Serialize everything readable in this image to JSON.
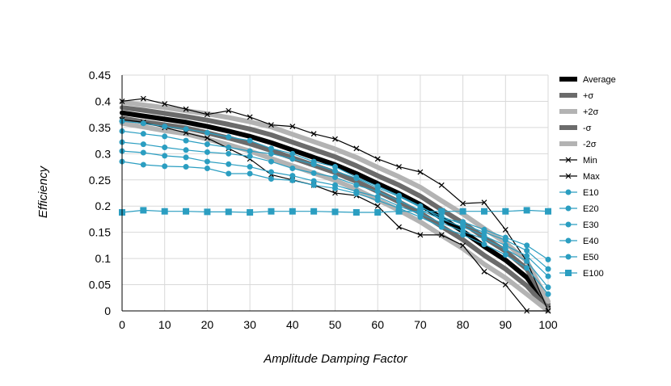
{
  "chart_data": {
    "type": "line",
    "xlabel": "Amplitude Damping Factor",
    "ylabel": "Efficiency",
    "xlim": [
      0,
      100
    ],
    "ylim": [
      0,
      0.45
    ],
    "xticks": [
      0,
      10,
      20,
      30,
      40,
      50,
      60,
      70,
      80,
      90,
      100
    ],
    "yticks": [
      0,
      0.05,
      0.1,
      0.15,
      0.2,
      0.25,
      0.3,
      0.35,
      0.4,
      0.45
    ],
    "ytick_labels": [
      "0",
      "0.05",
      "0.1",
      "0.15",
      "0.2",
      "0.25",
      "0.3",
      "0.35",
      "0.4",
      "0.45"
    ],
    "grid": true,
    "legend_position": "right",
    "x": [
      0,
      5,
      10,
      15,
      20,
      25,
      30,
      35,
      40,
      45,
      50,
      55,
      60,
      65,
      70,
      75,
      80,
      85,
      90,
      95,
      100
    ],
    "series": [
      {
        "name": "Average",
        "color": "#000000",
        "width": 6,
        "marker": "none",
        "values": [
          0.378,
          0.372,
          0.366,
          0.36,
          0.352,
          0.343,
          0.333,
          0.321,
          0.307,
          0.293,
          0.279,
          0.262,
          0.243,
          0.224,
          0.203,
          0.177,
          0.152,
          0.123,
          0.097,
          0.064,
          0.008
        ]
      },
      {
        "name": "+σ",
        "color": "#6b6b6b",
        "width": 6,
        "marker": "none",
        "values": [
          0.388,
          0.383,
          0.377,
          0.371,
          0.364,
          0.356,
          0.347,
          0.336,
          0.322,
          0.308,
          0.294,
          0.277,
          0.258,
          0.24,
          0.219,
          0.193,
          0.168,
          0.14,
          0.114,
          0.08,
          0.013
        ]
      },
      {
        "name": "+2σ",
        "color": "#b3b3b3",
        "width": 6,
        "marker": "none",
        "values": [
          0.398,
          0.393,
          0.388,
          0.382,
          0.376,
          0.369,
          0.361,
          0.351,
          0.337,
          0.323,
          0.309,
          0.293,
          0.274,
          0.256,
          0.236,
          0.21,
          0.185,
          0.157,
          0.13,
          0.095,
          0.018
        ]
      },
      {
        "name": "-σ",
        "color": "#6b6b6b",
        "width": 6,
        "marker": "none",
        "values": [
          0.368,
          0.361,
          0.355,
          0.349,
          0.34,
          0.33,
          0.319,
          0.306,
          0.292,
          0.278,
          0.264,
          0.247,
          0.228,
          0.208,
          0.187,
          0.161,
          0.136,
          0.106,
          0.08,
          0.048,
          0.003
        ]
      },
      {
        "name": "-2σ",
        "color": "#b3b3b3",
        "width": 6,
        "marker": "none",
        "values": [
          0.358,
          0.351,
          0.344,
          0.338,
          0.328,
          0.317,
          0.305,
          0.291,
          0.277,
          0.263,
          0.249,
          0.232,
          0.212,
          0.192,
          0.17,
          0.144,
          0.119,
          0.089,
          0.063,
          0.032,
          0.0
        ]
      },
      {
        "name": "Min",
        "color": "#000000",
        "width": 1.2,
        "marker": "x",
        "values": [
          0.365,
          0.36,
          0.35,
          0.34,
          0.33,
          0.31,
          0.29,
          0.26,
          0.25,
          0.24,
          0.225,
          0.22,
          0.2,
          0.16,
          0.145,
          0.145,
          0.125,
          0.075,
          0.05,
          0.0,
          0.0
        ]
      },
      {
        "name": "Max",
        "color": "#000000",
        "width": 1.2,
        "marker": "x",
        "values": [
          0.4,
          0.405,
          0.395,
          0.385,
          0.375,
          0.382,
          0.37,
          0.355,
          0.352,
          0.338,
          0.328,
          0.31,
          0.29,
          0.275,
          0.265,
          0.24,
          0.205,
          0.207,
          0.155,
          0.095,
          0.0
        ]
      },
      {
        "name": "E10",
        "color": "#2b9ec1",
        "width": 1.2,
        "marker": "circle",
        "values": [
          0.362,
          0.358,
          0.352,
          0.347,
          0.34,
          0.332,
          0.325,
          0.31,
          0.3,
          0.285,
          0.275,
          0.255,
          0.238,
          0.22,
          0.2,
          0.175,
          0.17,
          0.155,
          0.14,
          0.125,
          0.098
        ]
      },
      {
        "name": "E20",
        "color": "#2b9ec1",
        "width": 1.2,
        "marker": "circle",
        "values": [
          0.343,
          0.338,
          0.333,
          0.325,
          0.318,
          0.312,
          0.305,
          0.3,
          0.29,
          0.28,
          0.267,
          0.253,
          0.235,
          0.218,
          0.198,
          0.18,
          0.165,
          0.15,
          0.135,
          0.115,
          0.08
        ]
      },
      {
        "name": "E30",
        "color": "#2b9ec1",
        "width": 1.2,
        "marker": "circle",
        "values": [
          0.322,
          0.318,
          0.312,
          0.307,
          0.303,
          0.3,
          0.295,
          0.285,
          0.272,
          0.263,
          0.255,
          0.24,
          0.228,
          0.21,
          0.192,
          0.175,
          0.16,
          0.143,
          0.125,
          0.105,
          0.066
        ]
      },
      {
        "name": "E40",
        "color": "#2b9ec1",
        "width": 1.2,
        "marker": "circle",
        "values": [
          0.305,
          0.302,
          0.296,
          0.293,
          0.285,
          0.28,
          0.275,
          0.265,
          0.258,
          0.248,
          0.24,
          0.228,
          0.218,
          0.2,
          0.185,
          0.168,
          0.152,
          0.137,
          0.118,
          0.095,
          0.045
        ]
      },
      {
        "name": "E50",
        "color": "#2b9ec1",
        "width": 1.2,
        "marker": "circle",
        "values": [
          0.285,
          0.279,
          0.276,
          0.275,
          0.272,
          0.262,
          0.262,
          0.252,
          0.249,
          0.24,
          0.234,
          0.224,
          0.211,
          0.196,
          0.179,
          0.16,
          0.145,
          0.127,
          0.107,
          0.082,
          0.032
        ]
      },
      {
        "name": "E100",
        "color": "#2b9ec1",
        "width": 1.2,
        "marker": "square",
        "values": [
          0.188,
          0.192,
          0.19,
          0.19,
          0.189,
          0.189,
          0.188,
          0.19,
          0.19,
          0.19,
          0.189,
          0.188,
          0.188,
          0.19,
          0.19,
          0.19,
          0.19,
          0.19,
          0.19,
          0.192,
          0.19
        ]
      }
    ]
  }
}
